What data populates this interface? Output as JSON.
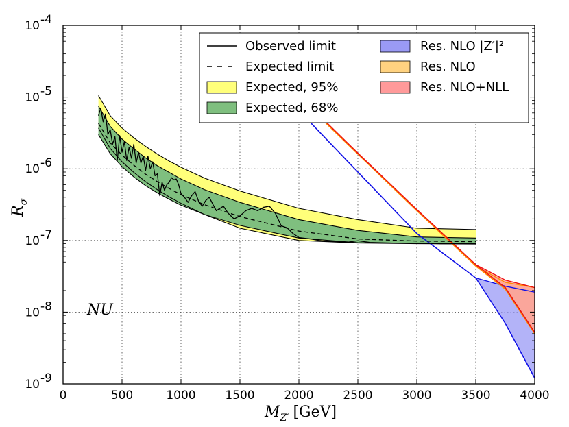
{
  "chart_data": {
    "type": "line",
    "title": "",
    "xlabel": "M_Z′ [GeV]",
    "xlabel_main": "M",
    "xlabel_sub": "Z′",
    "xlabel_unit": "[GeV]",
    "ylabel": "R_σ",
    "ylabel_main": "R",
    "ylabel_sub": "σ",
    "xlim": [
      0,
      4000
    ],
    "ylim_log10": [
      -9,
      -4
    ],
    "y_scale": "log",
    "grid": true,
    "x_ticks": [
      0,
      500,
      1000,
      1500,
      2000,
      2500,
      3000,
      3500,
      4000
    ],
    "x_tick_labels": [
      "0",
      "500",
      "1000",
      "1500",
      "2000",
      "2500",
      "3000",
      "3500",
      "4000"
    ],
    "y_ticks": [
      {
        "exp": -9,
        "base": "10",
        "sup": "-9"
      },
      {
        "exp": -8,
        "base": "10",
        "sup": "-8"
      },
      {
        "exp": -7,
        "base": "10",
        "sup": "-7"
      },
      {
        "exp": -6,
        "base": "10",
        "sup": "-6"
      },
      {
        "exp": -5,
        "base": "10",
        "sup": "-5"
      },
      {
        "exp": -4,
        "base": "10",
        "sup": "-4"
      }
    ],
    "annotation": "NU",
    "legend_location": "upper-right",
    "legend": [
      {
        "label": "Observed limit",
        "style": "solid-line",
        "color": "#000000"
      },
      {
        "label": "Expected limit",
        "style": "dashed-line",
        "color": "#000000"
      },
      {
        "label": "Expected, 95%",
        "style": "patch",
        "color": "#ffff7a"
      },
      {
        "label": "Expected, 68%",
        "style": "patch",
        "color": "#7fbf7f"
      },
      {
        "label": "Res. NLO |Z′|²",
        "style": "patch",
        "color": "#9a9af5"
      },
      {
        "label": "Res. NLO",
        "style": "patch",
        "color": "#ffd280"
      },
      {
        "label": "Res. NLO+NLL",
        "style": "patch",
        "color": "#ff9a9a"
      }
    ],
    "series": [
      {
        "name": "Expected, 95% upper",
        "x": [
          300,
          400,
          500,
          600,
          700,
          800,
          900,
          1000,
          1200,
          1500,
          2000,
          2500,
          3000,
          3500
        ],
        "y": [
          1.05e-05,
          5.5e-06,
          3.7e-06,
          2.7e-06,
          2.05e-06,
          1.6e-06,
          1.28e-06,
          1.05e-06,
          7.4e-07,
          4.9e-07,
          2.8e-07,
          1.95e-07,
          1.48e-07,
          1.42e-07
        ]
      },
      {
        "name": "Expected, 68% upper",
        "x": [
          300,
          400,
          500,
          600,
          700,
          800,
          900,
          1000,
          1200,
          1500,
          2000,
          2500,
          3000,
          3500
        ],
        "y": [
          7.5e-06,
          3.9e-06,
          2.6e-06,
          1.9e-06,
          1.42e-06,
          1.1e-06,
          8.9e-07,
          7.2e-07,
          5.1e-07,
          3.4e-07,
          1.95e-07,
          1.38e-07,
          1.12e-07,
          1.08e-07
        ]
      },
      {
        "name": "Expected limit",
        "x": [
          300,
          400,
          500,
          600,
          700,
          800,
          900,
          1000,
          1200,
          1500,
          2000,
          2500,
          3000,
          3500
        ],
        "y": [
          4.3e-06,
          2.3e-06,
          1.55e-06,
          1.12e-06,
          8.4e-07,
          6.6e-07,
          5.3e-07,
          4.35e-07,
          3.15e-07,
          2.15e-07,
          1.35e-07,
          1.05e-07,
          9.8e-08,
          9.6e-08
        ]
      },
      {
        "name": "Expected, 68% lower",
        "x": [
          300,
          400,
          500,
          600,
          700,
          800,
          900,
          1000,
          1200,
          1500,
          2000,
          2500,
          3000,
          3500
        ],
        "y": [
          3e-06,
          1.62e-06,
          1.07e-06,
          7.7e-07,
          5.8e-07,
          4.6e-07,
          3.75e-07,
          3.1e-07,
          2.3e-07,
          1.62e-07,
          1.08e-07,
          9.3e-08,
          9.1e-08,
          9e-08
        ]
      },
      {
        "name": "Expected, 95% lower",
        "x": [
          300,
          400,
          500,
          600,
          700,
          800,
          900,
          1000,
          1200,
          1500,
          2000,
          2500,
          3000,
          3500
        ],
        "y": [
          3.7e-06,
          1.92e-06,
          1.25e-06,
          8.9e-07,
          6.6e-07,
          5.1e-07,
          4.05e-07,
          3.3e-07,
          2.3e-07,
          1.48e-07,
          1e-07,
          9.2e-08,
          9e-08,
          8.9e-08
        ]
      },
      {
        "name": "Observed limit",
        "x": [
          300,
          320,
          340,
          360,
          380,
          400,
          420,
          440,
          460,
          480,
          500,
          520,
          540,
          560,
          580,
          600,
          620,
          640,
          660,
          680,
          700,
          720,
          740,
          760,
          780,
          800,
          820,
          840,
          860,
          880,
          900,
          920,
          940,
          960,
          980,
          1000,
          1030,
          1060,
          1090,
          1120,
          1150,
          1180,
          1210,
          1240,
          1270,
          1300,
          1330,
          1360,
          1400,
          1450,
          1500,
          1550,
          1600,
          1650,
          1700,
          1750,
          1800,
          1850,
          1900,
          1950,
          2000,
          2100,
          2200,
          2300,
          2400,
          2500,
          2600,
          2700,
          2800,
          2900,
          3000,
          3100,
          3200,
          3300,
          3400,
          3500
        ],
        "y": [
          5.5e-06,
          7e-06,
          4.5e-06,
          5.8e-06,
          3e-06,
          3.5e-06,
          2.2e-06,
          2.8e-06,
          1.3e-06,
          2.9e-06,
          1.7e-06,
          2.4e-06,
          1.3e-06,
          2e-06,
          1.4e-06,
          2.2e-06,
          1.2e-06,
          1.7e-06,
          1.2e-06,
          1.5e-06,
          9.5e-07,
          1.5e-06,
          1e-06,
          1.25e-06,
          8e-07,
          8.5e-07,
          4.2e-07,
          6.5e-07,
          5e-07,
          6e-07,
          6.5e-07,
          7.5e-07,
          7e-07,
          7.2e-07,
          6e-07,
          4.5e-07,
          4e-07,
          3.4e-07,
          4.2e-07,
          4.8e-07,
          3.5e-07,
          3e-07,
          3.6e-07,
          4e-07,
          3.2e-07,
          2.6e-07,
          2.8e-07,
          3e-07,
          2.4e-07,
          2e-07,
          2.2e-07,
          2.6e-07,
          2.8e-07,
          2.6e-07,
          2.9e-07,
          3e-07,
          2.4e-07,
          1.6e-07,
          1.5e-07,
          1.25e-07,
          1.1e-07,
          1.05e-07,
          9.8e-08,
          9.7e-08,
          9.4e-08,
          9.9e-08,
          9.4e-08,
          9.3e-08,
          9.2e-08,
          9.2e-08,
          9.1e-08,
          9.1e-08,
          9e-08,
          9e-08,
          9e-08,
          9e-08
        ]
      },
      {
        "name": "Res. NLO |Z′|²",
        "x": [
          2000,
          2500,
          3000,
          3500,
          3750,
          4000
        ],
        "y": [
          6.5e-06,
          9e-07,
          1.25e-07,
          3e-08,
          7e-09,
          1.2e-09
        ],
        "upper": [
          null,
          null,
          null,
          3e-08,
          2.3e-08,
          1.9e-08
        ]
      },
      {
        "name": "Res. NLO",
        "x": [
          2000,
          2500,
          3000,
          3500,
          3750,
          4000
        ],
        "y": [
          1e-05,
          1.6e-06,
          2.6e-07,
          4.4e-08,
          2.1e-08,
          5e-09
        ],
        "upper": [
          null,
          null,
          null,
          4.4e-08,
          2.6e-08,
          2.2e-08
        ]
      },
      {
        "name": "Res. NLO+NLL",
        "x": [
          2000,
          2500,
          3000,
          3500,
          3750,
          4000
        ],
        "y": [
          1.05e-05,
          1.65e-06,
          2.7e-07,
          4.6e-08,
          2.2e-08,
          5.2e-09
        ],
        "upper": [
          null,
          null,
          null,
          4.6e-08,
          2.8e-08,
          2.2e-08
        ]
      }
    ]
  }
}
